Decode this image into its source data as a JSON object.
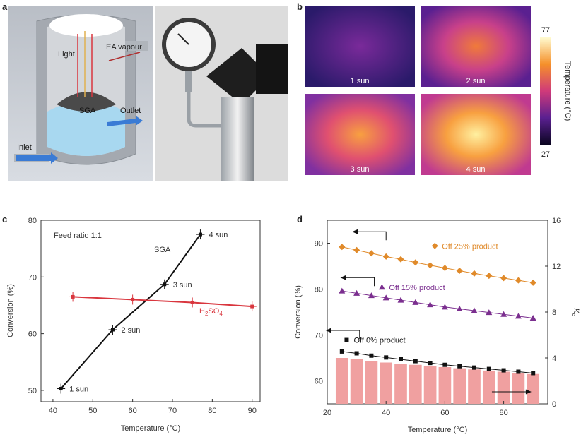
{
  "panels": {
    "a": "a",
    "b": "b",
    "c": "c",
    "d": "d"
  },
  "panel_a": {
    "labels": {
      "light": "Light",
      "ea": "EA vapour",
      "sga": "SGA",
      "outlet": "Outlet",
      "inlet": "Inlet"
    }
  },
  "panel_b": {
    "images": [
      "1 sun",
      "2 sun",
      "3 sun",
      "4 sun"
    ],
    "colorbar": {
      "max": "77",
      "min": "27",
      "label": "Temperature (°C)"
    }
  },
  "chart_data": [
    {
      "type": "line",
      "id": "c",
      "xlabel": "Temperature (°C)",
      "ylabel": "Conversion (%)",
      "xlim": [
        37,
        92
      ],
      "ylim": [
        48,
        80
      ],
      "xticks": [
        40,
        50,
        60,
        70,
        80,
        90
      ],
      "yticks": [
        50,
        60,
        70,
        80
      ],
      "annotation": "Feed ratio 1:1",
      "series": [
        {
          "name": "SGA",
          "color": "#111111",
          "x": [
            42,
            55,
            68,
            77
          ],
          "y": [
            50.3,
            60.7,
            68.7,
            77.5
          ],
          "point_labels": [
            "1 sun",
            "2 sun",
            "3 sun",
            "4 sun"
          ]
        },
        {
          "name": "H2SO4",
          "name_main": "H",
          "name_sub1": "2",
          "name_mid": "SO",
          "name_sub2": "4",
          "color": "#d9363e",
          "x": [
            45,
            60,
            75,
            90
          ],
          "y": [
            66.5,
            66.0,
            65.5,
            64.8
          ]
        }
      ]
    },
    {
      "type": "line+bar",
      "id": "d",
      "xlabel": "Temperature (°C)",
      "ylabel": "Conversion (%)",
      "y2label": "Kc",
      "xlim": [
        20,
        95
      ],
      "ylim": [
        55,
        95
      ],
      "y2lim": [
        0,
        16
      ],
      "xticks": [
        20,
        40,
        60,
        80
      ],
      "yticks": [
        60,
        70,
        80,
        90
      ],
      "y2ticks": [
        0,
        4,
        8,
        12,
        16
      ],
      "x": [
        25,
        30,
        35,
        40,
        45,
        50,
        55,
        60,
        65,
        70,
        75,
        80,
        85,
        90
      ],
      "series": [
        {
          "name": "Off 25% product",
          "color": "#e08a2a",
          "marker": "diamond",
          "values": [
            89.2,
            88.5,
            87.8,
            87.1,
            86.5,
            85.8,
            85.2,
            84.6,
            84.0,
            83.4,
            82.9,
            82.4,
            81.9,
            81.4
          ]
        },
        {
          "name": "Off 15% product",
          "color": "#7b2f8f",
          "marker": "triangle",
          "values": [
            79.6,
            79.1,
            78.6,
            78.1,
            77.6,
            77.1,
            76.6,
            76.1,
            75.7,
            75.3,
            74.9,
            74.5,
            74.1,
            73.7
          ]
        },
        {
          "name": "Off 0% product",
          "color": "#111111",
          "marker": "square",
          "values": [
            66.4,
            66.0,
            65.5,
            65.1,
            64.7,
            64.3,
            63.9,
            63.5,
            63.2,
            62.9,
            62.6,
            62.3,
            62.0,
            61.7
          ]
        }
      ],
      "bars": {
        "name": "Kc",
        "color": "#f0a0a0",
        "values": [
          4.0,
          3.9,
          3.7,
          3.6,
          3.5,
          3.4,
          3.3,
          3.2,
          3.1,
          3.0,
          2.9,
          2.8,
          2.7,
          2.6
        ]
      }
    }
  ]
}
